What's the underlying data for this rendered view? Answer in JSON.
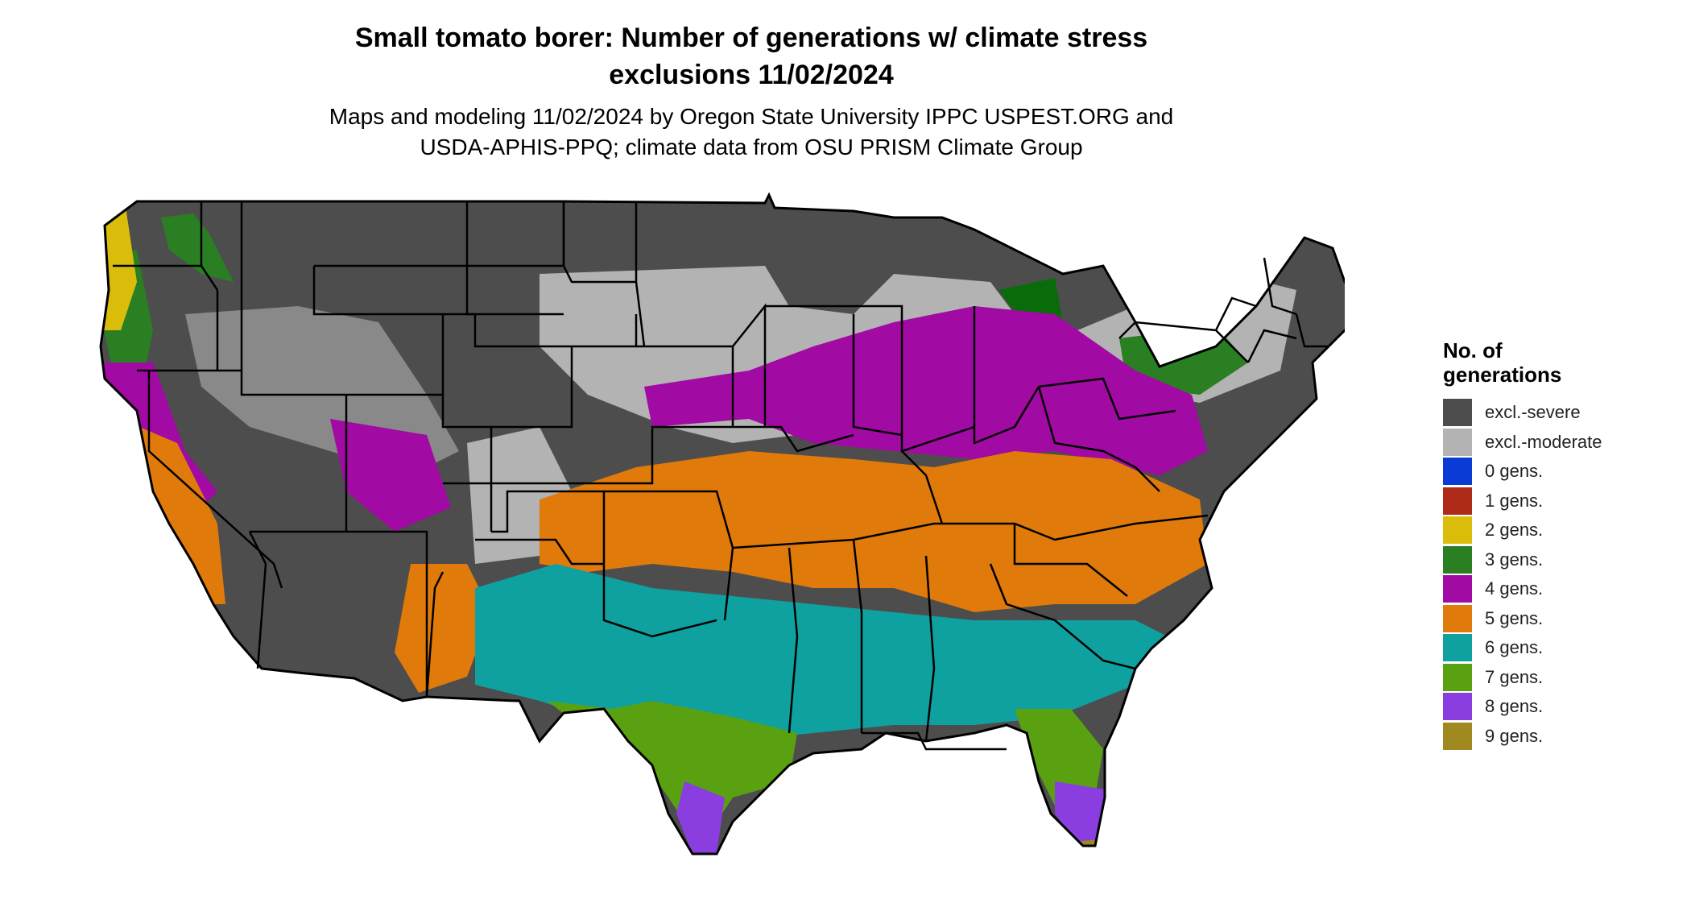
{
  "title": {
    "line1": "Small tomato borer: Number of generations w/ climate stress",
    "line2": "exclusions 11/02/2024"
  },
  "subtitle": {
    "line1": "Maps and modeling 11/02/2024 by Oregon State University IPPC USPEST.ORG and",
    "line2": "USDA-APHIS-PPQ; climate data from OSU PRISM Climate Group"
  },
  "legend": {
    "title_line1": "No. of",
    "title_line2": "generations",
    "items": [
      {
        "label": "excl.-severe",
        "color": "#4d4d4d"
      },
      {
        "label": "excl.-moderate",
        "color": "#b3b3b3"
      },
      {
        "label": "0 gens.",
        "color": "#0a3bd6"
      },
      {
        "label": "1 gens.",
        "color": "#b02a1a"
      },
      {
        "label": "2 gens.",
        "color": "#d9bd0a"
      },
      {
        "label": "3 gens.",
        "color": "#2a7f22"
      },
      {
        "label": "4 gens.",
        "color": "#a10aa3"
      },
      {
        "label": "5 gens.",
        "color": "#e07a0a"
      },
      {
        "label": "6 gens.",
        "color": "#0fa0a0"
      },
      {
        "label": "7 gens.",
        "color": "#5aa112"
      },
      {
        "label": "8 gens.",
        "color": "#8a3ee0"
      },
      {
        "label": "9 gens.",
        "color": "#a08a1f"
      }
    ]
  }
}
